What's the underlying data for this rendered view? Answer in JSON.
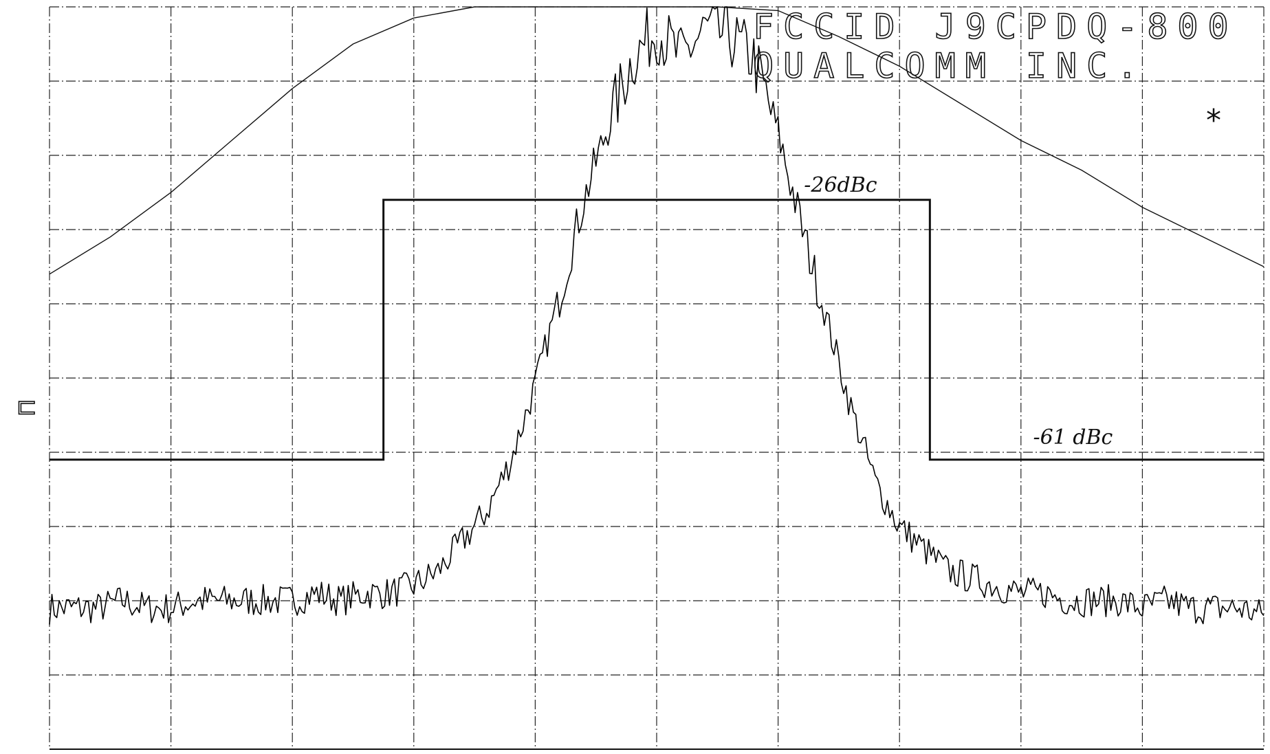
{
  "header": {
    "line1": "FCCID J9CPDQ-800",
    "line2": "QUALCOMM INC."
  },
  "marker_symbol": "*",
  "side_mark": "⊓",
  "colors": {
    "trace": "#000000",
    "grid": "#222222",
    "background": "#ffffff"
  },
  "chart_data": {
    "type": "line",
    "title": "",
    "xlabel": "",
    "ylabel": "",
    "grid": true,
    "grid_divisions": {
      "x": 10,
      "y": 10
    },
    "xlim": [
      0,
      10
    ],
    "ylim": [
      0,
      10
    ],
    "units": "grid divisions",
    "annotations": [
      {
        "text": "-26dBc",
        "x": 6.1,
        "y": 7.4
      },
      {
        "text": "-61 dBc",
        "x": 8.1,
        "y": 4.0
      }
    ],
    "series": [
      {
        "role": "emission-mask",
        "points": [
          [
            0,
            3.9
          ],
          [
            2.75,
            3.9
          ],
          [
            2.75,
            7.4
          ],
          [
            3.99,
            7.4
          ],
          [
            6.01,
            7.4
          ],
          [
            7.25,
            7.4
          ],
          [
            7.25,
            3.9
          ],
          [
            10,
            3.9
          ]
        ]
      },
      {
        "role": "filter-response",
        "points": [
          [
            0,
            6.4
          ],
          [
            0.5,
            6.9
          ],
          [
            1.0,
            7.5
          ],
          [
            1.5,
            8.2
          ],
          [
            2.0,
            8.9
          ],
          [
            2.5,
            9.5
          ],
          [
            3.0,
            9.85
          ],
          [
            3.5,
            10.0
          ],
          [
            4.5,
            10.0
          ],
          [
            5.5,
            10.0
          ],
          [
            6.0,
            9.95
          ],
          [
            6.5,
            9.6
          ],
          [
            7.0,
            9.2
          ],
          [
            7.5,
            8.7
          ],
          [
            8.0,
            8.2
          ],
          [
            8.5,
            7.8
          ],
          [
            9.0,
            7.3
          ],
          [
            9.5,
            6.9
          ],
          [
            10.0,
            6.5
          ]
        ]
      },
      {
        "role": "spectrum-trace",
        "x_start": 0,
        "x_step": 0.2,
        "values": [
          1.9,
          1.9,
          1.9,
          2.0,
          1.9,
          1.9,
          2.0,
          2.0,
          2.0,
          2.0,
          2.0,
          2.1,
          2.0,
          2.1,
          2.1,
          2.2,
          2.4,
          2.8,
          3.2,
          3.9,
          4.9,
          6.1,
          7.4,
          8.4,
          9.3,
          9.7,
          9.3,
          9.7,
          9.6,
          9.3,
          8.3,
          7.0,
          5.8,
          4.6,
          3.6,
          3.0,
          2.7,
          2.4,
          2.3,
          2.2,
          2.1,
          2.1,
          2.0,
          2.0,
          2.0,
          1.9,
          2.0,
          1.9,
          1.9,
          1.9,
          1.8
        ]
      }
    ]
  }
}
